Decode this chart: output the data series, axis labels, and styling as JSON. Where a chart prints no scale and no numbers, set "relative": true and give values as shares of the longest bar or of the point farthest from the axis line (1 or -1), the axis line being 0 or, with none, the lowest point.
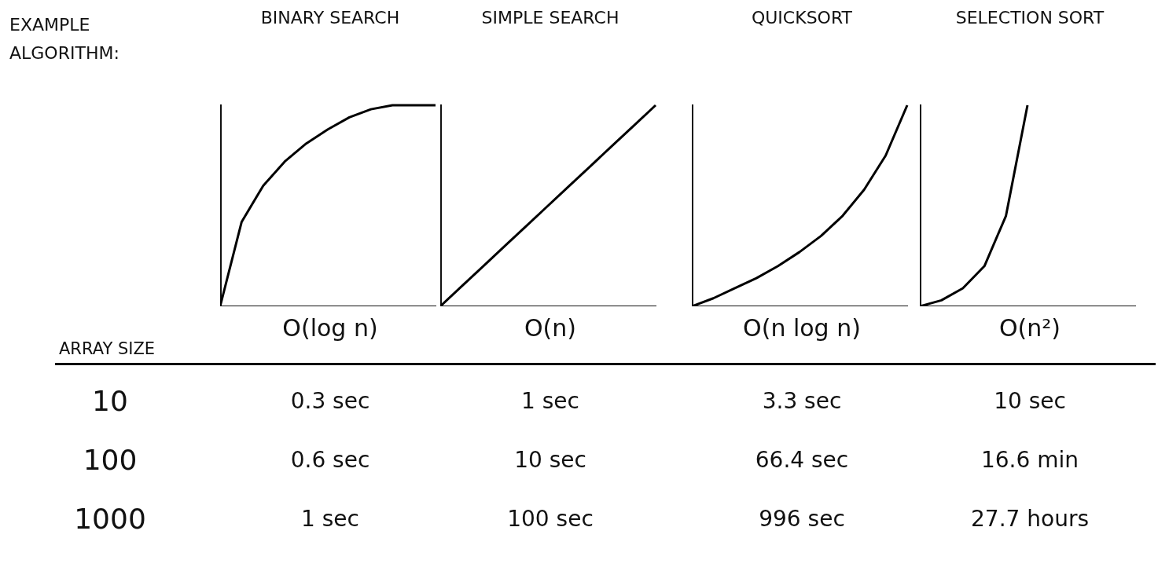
{
  "chart_data": [
    {
      "type": "line",
      "title": "BINARY SEARCH",
      "xlabel": "O(log n)",
      "relative": true,
      "marker": "none",
      "categories": [
        null,
        null,
        null,
        null,
        null,
        null,
        null,
        null,
        null,
        null,
        null
      ],
      "series": [
        {
          "color": "#000000",
          "values": [
            0,
            0.42,
            0.6,
            0.72,
            0.81,
            0.88,
            0.94,
            0.98,
            1,
            1,
            1
          ]
        }
      ]
    },
    {
      "type": "line",
      "title": "SIMPLE SEARCH",
      "xlabel": "O(n)",
      "relative": true,
      "marker": "none",
      "categories": [
        null,
        null,
        null,
        null,
        null,
        null,
        null,
        null,
        null,
        null,
        null
      ],
      "series": [
        {
          "color": "#000000",
          "values": [
            0,
            0.1,
            0.2,
            0.3,
            0.4,
            0.5,
            0.6,
            0.7,
            0.8,
            0.9,
            1
          ]
        }
      ]
    },
    {
      "type": "line",
      "title": "QUICKSORT",
      "xlabel": "O(n log n)",
      "relative": true,
      "marker": "none",
      "categories": [
        null,
        null,
        null,
        null,
        null,
        null,
        null,
        null,
        null,
        null,
        null
      ],
      "series": [
        {
          "color": "#000000",
          "values": [
            0,
            0.04,
            0.09,
            0.14,
            0.2,
            0.27,
            0.35,
            0.45,
            0.58,
            0.75,
            1
          ]
        }
      ]
    },
    {
      "type": "line",
      "title": "SELECTION SORT",
      "xlabel": "O(n²)",
      "relative": true,
      "marker": "none",
      "categories": [
        null,
        null,
        null,
        null,
        null,
        null,
        null,
        null,
        null,
        null,
        null
      ],
      "series": [
        {
          "color": "#000000",
          "values": [
            0,
            0.03,
            0.09,
            0.2,
            0.45,
            1,
            null,
            null,
            null,
            null,
            null
          ]
        }
      ]
    },
    {
      "type": "other",
      "title": "EXAMPLE ALGORITHM:",
      "ylabel": "ARRAY SIZE",
      "y_categories": [
        "10",
        "100",
        "1000"
      ],
      "cell_labels": [
        [
          "0.3 sec",
          "1 sec",
          "3.3 sec",
          "10 sec"
        ],
        [
          "0.6 sec",
          "10 sec",
          "66.4 sec",
          "16.6 min"
        ],
        [
          "1 sec",
          "100 sec",
          "996 sec",
          "27.7 hours"
        ]
      ]
    }
  ]
}
